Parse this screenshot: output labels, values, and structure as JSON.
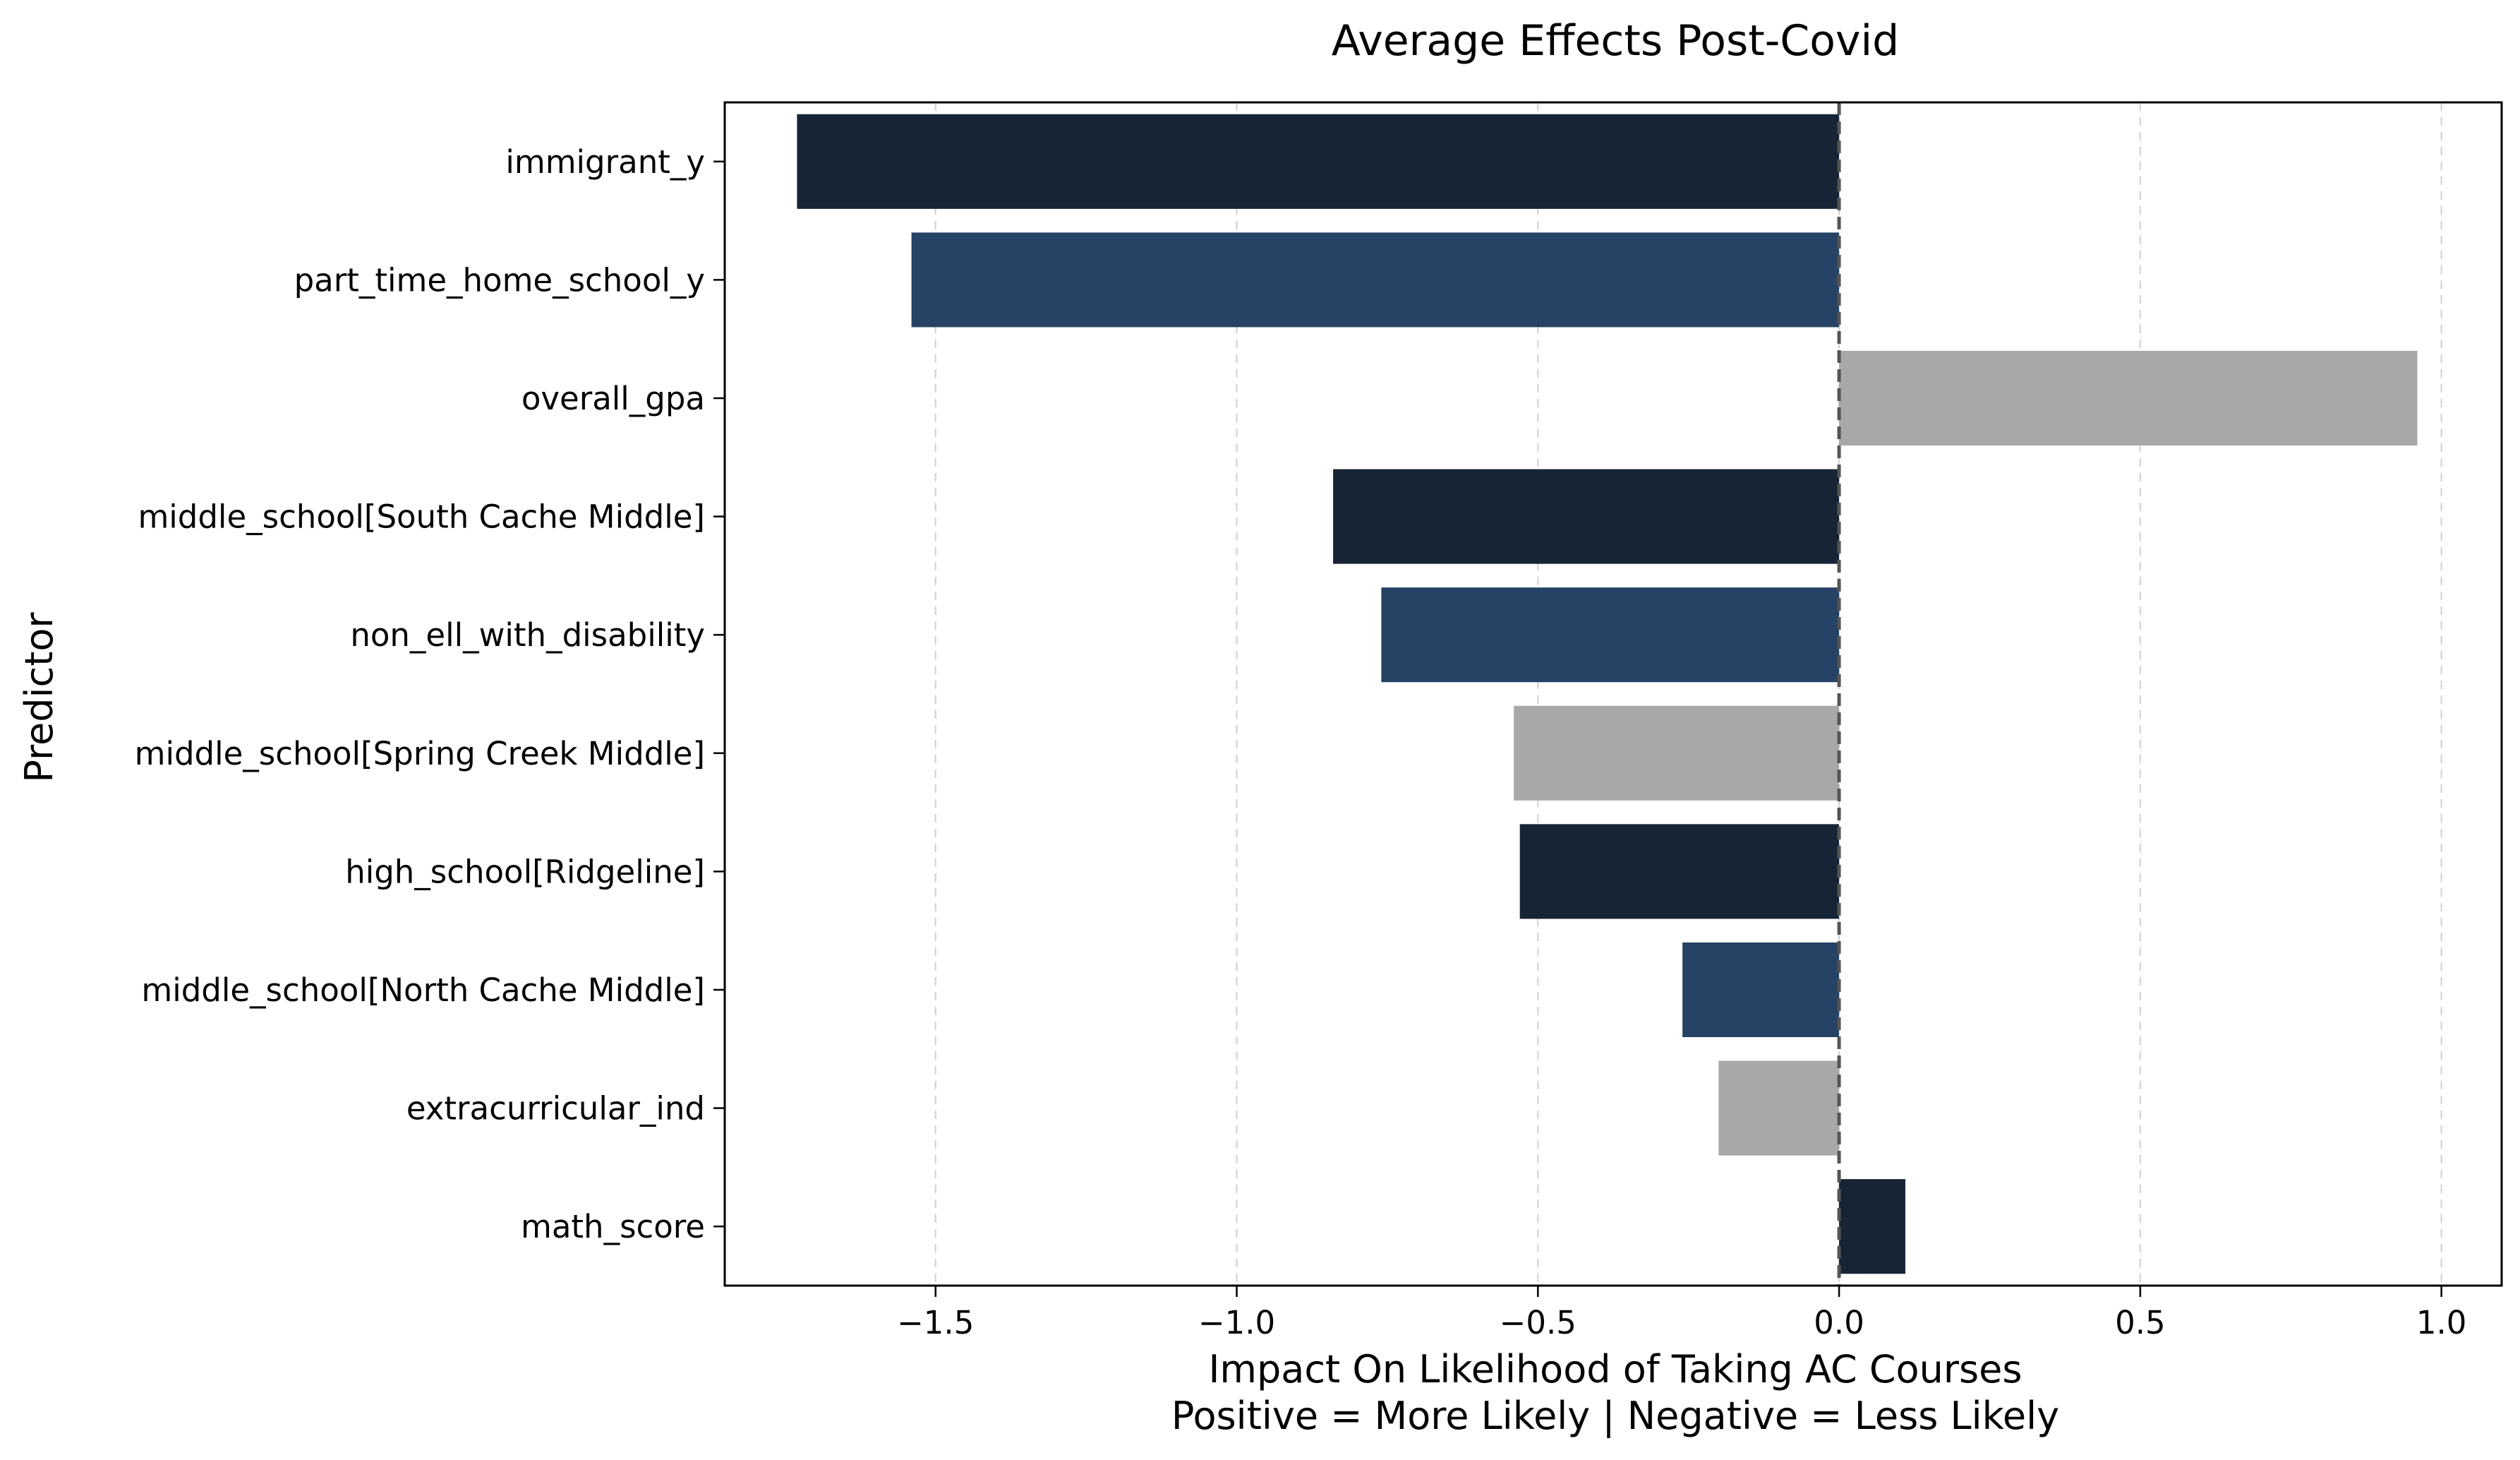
{
  "chart_data": {
    "type": "bar",
    "orientation": "horizontal",
    "title": "Average Effects Post-Covid",
    "xlabel_line1": "Impact On Likelihood of Taking AC Courses",
    "xlabel_line2": "Positive = More Likely | Negative = Less Likely",
    "ylabel": "Predictor",
    "xlim": [
      -1.85,
      1.1
    ],
    "xticks": [
      -1.5,
      -1.0,
      -0.5,
      0.0,
      0.5,
      1.0
    ],
    "xtick_labels": [
      "−1.5",
      "−1.0",
      "−0.5",
      "0.0",
      "0.5",
      "1.0"
    ],
    "grid": "vertical dashed",
    "reference_line": 0.0,
    "categories": [
      "immigrant_y",
      "part_time_home_school_y",
      "overall_gpa",
      "middle_school[South Cache Middle]",
      "non_ell_with_disability",
      "middle_school[Spring Creek Middle]",
      "high_school[Ridgeline]",
      "middle_school[North Cache Middle]",
      "extracurricular_ind",
      "math_score"
    ],
    "values": [
      -1.73,
      -1.54,
      0.96,
      -0.84,
      -0.76,
      -0.54,
      -0.53,
      -0.26,
      -0.2,
      0.11
    ],
    "bar_colors": [
      "#162435",
      "#264264",
      "#a7a8aa",
      "#162435",
      "#264264",
      "#a7a8aa",
      "#162435",
      "#264264",
      "#a7a8aa",
      "#162435"
    ]
  }
}
